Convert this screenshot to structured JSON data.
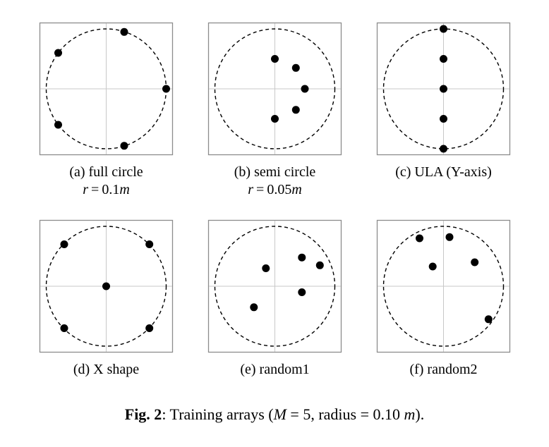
{
  "figure": {
    "label": "Fig. 2",
    "caption_text": "Training arrays (",
    "caption_math_m": "M",
    "caption_eq": " = 5, radius = 0.10 ",
    "caption_unit": "m",
    "caption_end": ")."
  },
  "panels": [
    {
      "id": "a",
      "caption": "(a) full circle",
      "radius_label": "r = 0.1m",
      "mics": [
        [
          0.3,
          0.95
        ],
        [
          -0.8,
          0.6
        ],
        [
          1.0,
          0.0
        ],
        [
          -0.8,
          -0.6
        ],
        [
          0.3,
          -0.95
        ]
      ]
    },
    {
      "id": "b",
      "caption": "(b) semi circle",
      "radius_label": "r = 0.05m",
      "mics": [
        [
          0.0,
          0.5
        ],
        [
          0.35,
          0.35
        ],
        [
          0.5,
          0.0
        ],
        [
          0.35,
          -0.35
        ],
        [
          0.0,
          -0.5
        ]
      ]
    },
    {
      "id": "c",
      "caption": "(c) ULA (Y-axis)",
      "radius_label": "",
      "mics": [
        [
          0.0,
          1.0
        ],
        [
          0.0,
          0.5
        ],
        [
          0.0,
          0.0
        ],
        [
          0.0,
          -0.5
        ],
        [
          0.0,
          -1.0
        ]
      ]
    },
    {
      "id": "d",
      "caption": "(d) X shape",
      "radius_label": "",
      "mics": [
        [
          -0.7,
          0.7
        ],
        [
          0.72,
          0.7
        ],
        [
          0.0,
          0.0
        ],
        [
          -0.7,
          -0.7
        ],
        [
          0.72,
          -0.7
        ]
      ]
    },
    {
      "id": "e",
      "caption": "(e) random1",
      "radius_label": "",
      "mics": [
        [
          -0.15,
          0.3
        ],
        [
          0.45,
          0.48
        ],
        [
          0.75,
          0.35
        ],
        [
          0.45,
          -0.1
        ],
        [
          -0.35,
          -0.35
        ]
      ]
    },
    {
      "id": "f",
      "caption": "(f) random2",
      "radius_label": "",
      "mics": [
        [
          -0.4,
          0.8
        ],
        [
          0.1,
          0.82
        ],
        [
          -0.18,
          0.33
        ],
        [
          0.52,
          0.4
        ],
        [
          0.75,
          -0.55
        ]
      ]
    }
  ]
}
